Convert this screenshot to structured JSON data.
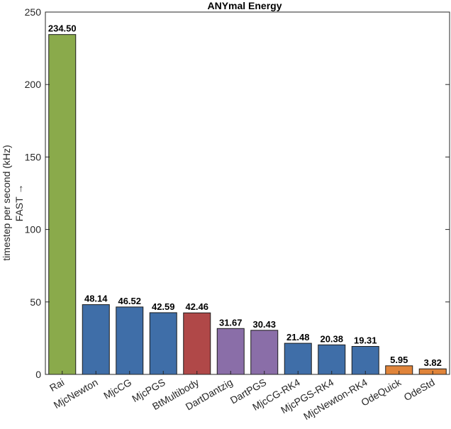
{
  "chart_data": {
    "type": "bar",
    "title": "ANYmal Energy",
    "ylabel": [
      "timestep per second (kHz)",
      "FAST →"
    ],
    "xlabel": "",
    "ylim": [
      0,
      250
    ],
    "yticks": [
      0,
      50,
      100,
      150,
      200,
      250
    ],
    "grid": false,
    "categories": [
      "Rai",
      "MjcNewton",
      "MjcCG",
      "MjcPGS",
      "BtMultibody",
      "DartDantzig",
      "DartPGS",
      "MjcCG-RK4",
      "MjcPGS-RK4",
      "MjcNewton-RK4",
      "OdeQuick",
      "OdeStd"
    ],
    "values": [
      234.5,
      48.14,
      46.52,
      42.59,
      42.46,
      31.67,
      30.43,
      21.48,
      20.38,
      19.31,
      5.95,
      3.82
    ],
    "value_labels": [
      "234.50",
      "48.14",
      "46.52",
      "42.59",
      "42.46",
      "31.67",
      "30.43",
      "21.48",
      "20.38",
      "19.31",
      "5.95",
      "3.82"
    ],
    "bar_colors": [
      "#8aaa4b",
      "#3f6ea8",
      "#3f6ea8",
      "#3f6ea8",
      "#b04848",
      "#8a6ea8",
      "#8a6ea8",
      "#3f6ea8",
      "#3f6ea8",
      "#3f6ea8",
      "#e0843a",
      "#e0843a"
    ]
  }
}
